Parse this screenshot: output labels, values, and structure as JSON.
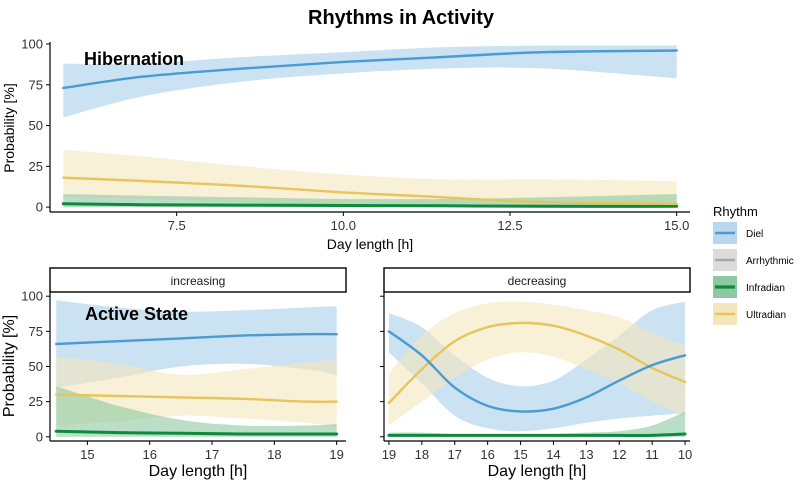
{
  "figure": {
    "title": "Rhythms in Activity",
    "legend": {
      "title": "Rhythm",
      "entries": [
        {
          "name": "Diel",
          "line_color": "#4a9bd2",
          "fill_color": "#b9d8ef"
        },
        {
          "name": "Arrhythmic",
          "line_color": "#a8a8a8",
          "fill_color": "#dcdcdc"
        },
        {
          "name": "Infradian",
          "line_color": "#0e8a3e",
          "fill_color": "#8cc9a0"
        },
        {
          "name": "Ultradian",
          "line_color": "#e6c65a",
          "fill_color": "#f3e6bd"
        }
      ]
    },
    "colors": {
      "axis": "#000000",
      "tick_text": "#333333",
      "facet_border": "#000000",
      "background": "#ffffff"
    }
  },
  "chart_data": [
    {
      "type": "line",
      "panel": "top",
      "panel_label": "Hibernation",
      "xlabel": "Day length [h]",
      "ylabel": "Probability [%]",
      "xlim": [
        5.6,
        15.2
      ],
      "ylim": [
        -3,
        100
      ],
      "x_ticks": [
        7.5,
        10.0,
        12.5,
        15.0
      ],
      "x_tick_labels": [
        "7.5",
        "10.0",
        "12.5",
        "15.0"
      ],
      "y_ticks": [
        0,
        25,
        50,
        75,
        100
      ],
      "y_tick_labels": [
        "0",
        "25",
        "50",
        "75",
        "100"
      ],
      "x_reversed": false,
      "series": [
        {
          "name": "Diel",
          "x": [
            5.8,
            7.0,
            8.5,
            10.0,
            11.5,
            13.0,
            15.0
          ],
          "y": [
            73,
            80,
            85,
            89,
            92,
            95,
            96
          ],
          "lower": [
            55,
            68,
            77,
            82,
            85,
            85,
            79
          ],
          "upper": [
            88,
            88,
            92,
            95,
            98,
            99,
            99
          ]
        },
        {
          "name": "Infradian",
          "x": [
            5.8,
            7.0,
            8.5,
            10.0,
            11.5,
            13.0,
            15.0
          ],
          "y": [
            2,
            1.5,
            1.2,
            1,
            0.8,
            0.5,
            0.5
          ],
          "lower": [
            0,
            0,
            0,
            0,
            0,
            0,
            0
          ],
          "upper": [
            8,
            7,
            6,
            5,
            5,
            6,
            8
          ]
        },
        {
          "name": "Ultradian",
          "x": [
            5.8,
            7.0,
            8.5,
            10.0,
            11.5,
            13.0,
            15.0
          ],
          "y": [
            18,
            16,
            13,
            9,
            6,
            3,
            2
          ],
          "lower": [
            6,
            5,
            3,
            1,
            0,
            0,
            0
          ],
          "upper": [
            35,
            31,
            25,
            20,
            17,
            17,
            16
          ]
        }
      ]
    },
    {
      "type": "line",
      "panel": "bottom-left",
      "panel_label": "Active State",
      "facet_label": "increasing",
      "xlabel": "Day length [h]",
      "ylabel": "Probability [%]",
      "xlim": [
        14.4,
        19.15
      ],
      "ylim": [
        -3,
        103
      ],
      "x_ticks": [
        15,
        16,
        17,
        18,
        19
      ],
      "x_tick_labels": [
        "15",
        "16",
        "17",
        "18",
        "19"
      ],
      "y_ticks": [
        0,
        25,
        50,
        75,
        100
      ],
      "y_tick_labels": [
        "0",
        "25",
        "50",
        "75",
        "100"
      ],
      "x_reversed": false,
      "series": [
        {
          "name": "Diel",
          "x": [
            14.5,
            15.5,
            16.5,
            17.5,
            18.5,
            19.0
          ],
          "y": [
            66,
            68,
            70,
            72,
            73,
            73
          ],
          "lower": [
            35,
            42,
            50,
            52,
            48,
            44
          ],
          "upper": [
            97,
            92,
            89,
            90,
            92,
            93
          ]
        },
        {
          "name": "Infradian",
          "x": [
            14.5,
            15.5,
            16.5,
            17.5,
            18.5,
            19.0
          ],
          "y": [
            4,
            3,
            2.5,
            2,
            2,
            2
          ],
          "lower": [
            0,
            0,
            0,
            0,
            0,
            0
          ],
          "upper": [
            36,
            22,
            12,
            8,
            8,
            9
          ]
        },
        {
          "name": "Ultradian",
          "x": [
            14.5,
            15.5,
            16.5,
            17.5,
            18.5,
            19.0
          ],
          "y": [
            30,
            29,
            28,
            27,
            25,
            25
          ],
          "lower": [
            8,
            11,
            15,
            13,
            10,
            7
          ],
          "upper": [
            57,
            52,
            44,
            48,
            53,
            55
          ]
        }
      ]
    },
    {
      "type": "line",
      "panel": "bottom-right",
      "facet_label": "decreasing",
      "xlabel": "Day length [h]",
      "ylabel": "",
      "xlim": [
        19.15,
        9.85
      ],
      "ylim": [
        -3,
        103
      ],
      "x_ticks": [
        19,
        18,
        17,
        16,
        15,
        14,
        13,
        12,
        11,
        10
      ],
      "x_tick_labels": [
        "19",
        "18",
        "17",
        "16",
        "15",
        "14",
        "13",
        "12",
        "11",
        "10"
      ],
      "y_ticks": [
        0,
        25,
        50,
        75,
        100
      ],
      "y_tick_labels": [],
      "x_reversed": true,
      "series": [
        {
          "name": "Diel",
          "x": [
            19,
            18,
            17,
            16,
            15,
            14,
            13,
            12,
            11,
            10
          ],
          "y": [
            75,
            58,
            35,
            22,
            18,
            20,
            28,
            40,
            51,
            58
          ],
          "lower": [
            60,
            38,
            15,
            6,
            4,
            6,
            10,
            13,
            15,
            17
          ],
          "upper": [
            88,
            78,
            58,
            42,
            36,
            40,
            55,
            72,
            90,
            96
          ]
        },
        {
          "name": "Infradian",
          "x": [
            19,
            18,
            17,
            16,
            15,
            14,
            13,
            12,
            11,
            10
          ],
          "y": [
            1,
            1,
            1,
            1,
            1,
            1,
            1,
            1,
            1,
            2
          ],
          "lower": [
            0,
            0,
            0,
            0,
            0,
            0,
            0,
            0,
            0,
            0
          ],
          "upper": [
            3,
            3,
            2,
            2,
            2,
            2,
            3,
            4,
            8,
            18
          ]
        },
        {
          "name": "Ultradian",
          "x": [
            19,
            18,
            17,
            16,
            15,
            14,
            13,
            12,
            11,
            10
          ],
          "y": [
            24,
            48,
            68,
            78,
            81,
            79,
            72,
            62,
            49,
            39
          ],
          "lower": [
            8,
            25,
            42,
            55,
            60,
            57,
            48,
            38,
            25,
            14
          ],
          "upper": [
            45,
            72,
            88,
            95,
            96,
            94,
            90,
            85,
            74,
            65
          ]
        }
      ]
    }
  ]
}
